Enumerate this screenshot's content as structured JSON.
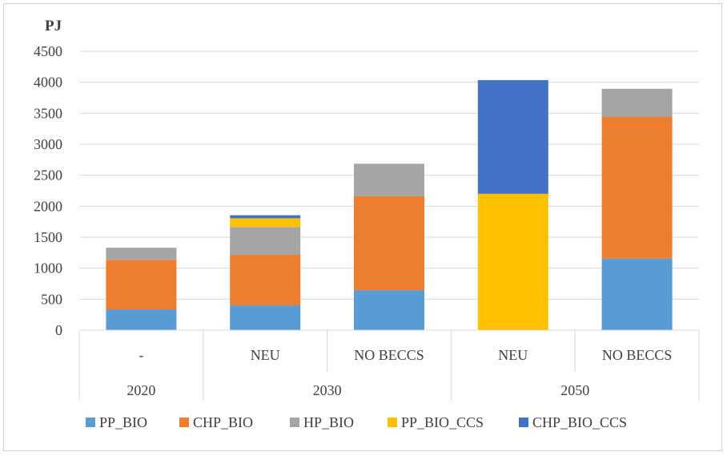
{
  "chart_data": {
    "type": "bar",
    "stacked": true,
    "unit_label": "PJ",
    "ylim": [
      0,
      4500
    ],
    "yticks": [
      0,
      500,
      1000,
      1500,
      2000,
      2500,
      3000,
      3500,
      4000,
      4500
    ],
    "grid": true,
    "legend_position": "bottom",
    "categories": [
      "-",
      "NEU",
      "NO BECCS",
      "NEU",
      "NO BECCS"
    ],
    "groups": [
      {
        "label": "2020",
        "span": 1
      },
      {
        "label": "2030",
        "span": 2
      },
      {
        "label": "2050",
        "span": 2
      }
    ],
    "series": [
      {
        "name": "PP_BIO",
        "color": "#5b9bd5",
        "values": [
          335,
          400,
          645,
          0,
          1155
        ]
      },
      {
        "name": "CHP_BIO",
        "color": "#ed7d31",
        "values": [
          800,
          820,
          1515,
          0,
          2290
        ]
      },
      {
        "name": "HP_BIO",
        "color": "#a5a5a5",
        "values": [
          195,
          445,
          525,
          0,
          450
        ]
      },
      {
        "name": "PP_BIO_CCS",
        "color": "#ffc000",
        "values": [
          0,
          140,
          0,
          2200,
          0
        ]
      },
      {
        "name": "CHP_BIO_CCS",
        "color": "#4472c4",
        "values": [
          0,
          50,
          0,
          1835,
          0
        ]
      }
    ]
  }
}
